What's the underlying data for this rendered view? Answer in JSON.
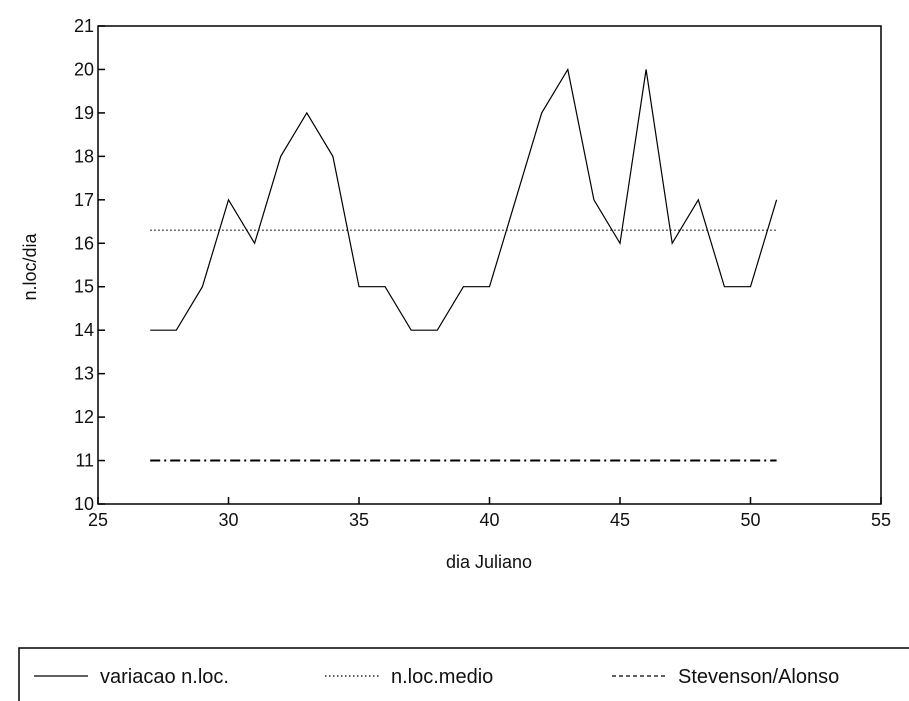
{
  "chart_data": {
    "type": "line",
    "xlabel": "dia Juliano",
    "ylabel": "n.loc/dia",
    "xlim": [
      25,
      55
    ],
    "ylim": [
      10,
      21
    ],
    "xticks": [
      25,
      30,
      35,
      40,
      45,
      50,
      55
    ],
    "yticks": [
      10,
      11,
      12,
      13,
      14,
      15,
      16,
      17,
      18,
      19,
      20,
      21
    ],
    "grid": false,
    "legend_position": "bottom",
    "series": [
      {
        "name": "variacao n.loc.",
        "style": "solid",
        "x": [
          27,
          28,
          29,
          30,
          31,
          32,
          33,
          34,
          35,
          36,
          37,
          38,
          39,
          40,
          41,
          42,
          43,
          44,
          45,
          46,
          47,
          48,
          49,
          50,
          51
        ],
        "y": [
          14,
          14,
          15,
          17,
          16,
          18,
          19,
          18,
          15,
          15,
          14,
          14,
          15,
          15,
          17,
          19,
          20,
          17,
          16,
          20,
          16,
          17,
          15,
          15,
          17
        ]
      },
      {
        "name": "n.loc.medio",
        "style": "dotted",
        "x": [
          27,
          51
        ],
        "y": [
          16.3,
          16.3
        ]
      },
      {
        "name": "Stevenson/Alonso",
        "style": "dashdot",
        "x": [
          27,
          51
        ],
        "y": [
          11,
          11
        ]
      }
    ]
  }
}
